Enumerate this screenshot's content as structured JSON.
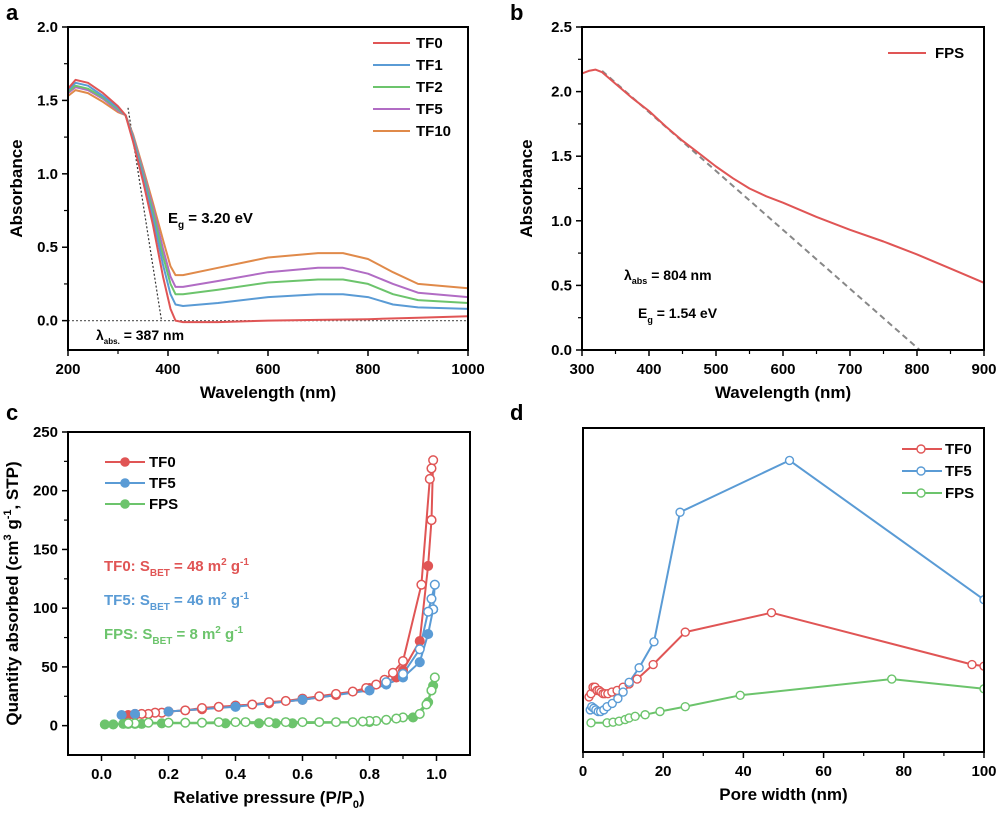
{
  "chart_data": [
    {
      "panel": "a",
      "type": "line",
      "title": "",
      "xlabel": "Wavelength (nm)",
      "ylabel": "Absorbance",
      "xlim": [
        200,
        1000
      ],
      "ylim": [
        -0.2,
        2.0
      ],
      "xticks": [
        200,
        400,
        600,
        800,
        1000
      ],
      "xtick_labels": [
        "200",
        "400",
        "600",
        "800",
        "1000"
      ],
      "yticks": [
        0.0,
        0.5,
        1.0,
        1.5,
        2.0
      ],
      "ytick_labels": [
        "0.0",
        "0.5",
        "1.0",
        "1.5",
        "2.0"
      ],
      "grid": false,
      "legend_position": "top-right",
      "series": [
        {
          "name": "TF0",
          "color": "#e05555",
          "x": [
            200,
            215,
            240,
            270,
            300,
            315,
            330,
            350,
            370,
            390,
            405,
            415,
            430,
            500,
            600,
            700,
            800,
            900,
            1000
          ],
          "y": [
            1.58,
            1.64,
            1.62,
            1.55,
            1.46,
            1.4,
            1.22,
            0.95,
            0.65,
            0.3,
            0.08,
            0.0,
            -0.01,
            -0.01,
            0.0,
            0.005,
            0.01,
            0.02,
            0.03
          ]
        },
        {
          "name": "TF1",
          "color": "#5a9bd5",
          "x": [
            200,
            215,
            240,
            270,
            300,
            315,
            330,
            350,
            370,
            390,
            405,
            415,
            430,
            500,
            600,
            700,
            750,
            800,
            850,
            900,
            1000
          ],
          "y": [
            1.57,
            1.62,
            1.6,
            1.53,
            1.45,
            1.4,
            1.24,
            0.98,
            0.7,
            0.38,
            0.18,
            0.11,
            0.1,
            0.12,
            0.16,
            0.18,
            0.18,
            0.16,
            0.11,
            0.09,
            0.08
          ]
        },
        {
          "name": "TF2",
          "color": "#6cc46c",
          "x": [
            200,
            215,
            240,
            270,
            300,
            315,
            330,
            350,
            370,
            390,
            405,
            415,
            430,
            500,
            600,
            700,
            750,
            800,
            850,
            900,
            1000
          ],
          "y": [
            1.56,
            1.6,
            1.58,
            1.52,
            1.44,
            1.4,
            1.25,
            1.0,
            0.74,
            0.44,
            0.25,
            0.18,
            0.18,
            0.21,
            0.26,
            0.28,
            0.28,
            0.25,
            0.18,
            0.14,
            0.12
          ]
        },
        {
          "name": "TF5",
          "color": "#b16cc4",
          "x": [
            200,
            215,
            240,
            270,
            300,
            315,
            330,
            350,
            370,
            390,
            405,
            415,
            430,
            500,
            600,
            700,
            750,
            800,
            850,
            900,
            1000
          ],
          "y": [
            1.55,
            1.59,
            1.57,
            1.51,
            1.43,
            1.4,
            1.26,
            1.02,
            0.77,
            0.49,
            0.3,
            0.23,
            0.23,
            0.27,
            0.33,
            0.36,
            0.36,
            0.32,
            0.25,
            0.19,
            0.16
          ]
        },
        {
          "name": "TF10",
          "color": "#e08a4a",
          "x": [
            200,
            215,
            240,
            270,
            300,
            315,
            330,
            350,
            370,
            390,
            405,
            415,
            430,
            500,
            600,
            700,
            750,
            800,
            850,
            900,
            1000
          ],
          "y": [
            1.53,
            1.57,
            1.55,
            1.49,
            1.42,
            1.4,
            1.27,
            1.04,
            0.8,
            0.55,
            0.37,
            0.31,
            0.31,
            0.36,
            0.43,
            0.46,
            0.46,
            0.42,
            0.33,
            0.25,
            0.22
          ]
        }
      ],
      "tangent_line": {
        "x": [
          320,
          387
        ],
        "y": [
          1.45,
          0.0
        ],
        "style": "dotted",
        "color": "#333333"
      },
      "baseline_line": {
        "y": 0.0,
        "style": "dotted",
        "color": "#666666"
      },
      "annotations": [
        {
          "text_main": "E",
          "text_sub": "g",
          "text_rest": " = 3.20 eV"
        },
        {
          "text_main": "λ",
          "text_sub": "abs.",
          "text_rest": " = 387 nm"
        }
      ]
    },
    {
      "panel": "b",
      "type": "line",
      "title": "",
      "xlabel": "Wavelength (nm)",
      "ylabel": "Absorbance",
      "xlim": [
        300,
        900
      ],
      "ylim": [
        0.0,
        2.5
      ],
      "xticks": [
        300,
        400,
        500,
        600,
        700,
        800,
        900
      ],
      "xtick_labels": [
        "300",
        "400",
        "500",
        "600",
        "700",
        "800",
        "900"
      ],
      "yticks": [
        0.0,
        0.5,
        1.0,
        1.5,
        2.0,
        2.5
      ],
      "ytick_labels": [
        "0.0",
        "0.5",
        "1.0",
        "1.5",
        "2.0",
        "2.5"
      ],
      "grid": false,
      "legend_position": "top-right",
      "series": [
        {
          "name": "FPS",
          "color": "#e05555",
          "x": [
            300,
            310,
            320,
            330,
            350,
            375,
            400,
            425,
            450,
            475,
            500,
            525,
            550,
            575,
            600,
            650,
            700,
            750,
            800,
            850,
            900
          ],
          "y": [
            2.14,
            2.16,
            2.17,
            2.15,
            2.06,
            1.95,
            1.85,
            1.73,
            1.62,
            1.52,
            1.42,
            1.33,
            1.25,
            1.19,
            1.14,
            1.03,
            0.93,
            0.84,
            0.74,
            0.63,
            0.52
          ]
        }
      ],
      "tangent_line": {
        "x": [
          330,
          804
        ],
        "y": [
          2.16,
          0.0
        ],
        "style": "dashed",
        "color": "#888888"
      },
      "annotations": [
        {
          "text_main": "λ",
          "text_sub": "abs",
          "text_rest": " = 804 nm"
        },
        {
          "text_main": "E",
          "text_sub": "g",
          "text_rest": " = 1.54 eV"
        }
      ]
    },
    {
      "panel": "c",
      "type": "scatter",
      "title": "",
      "xlabel": "Relative pressure (P/P0)",
      "xlabel_main": "Relative pressure (P/P",
      "xlabel_sub": "0",
      "xlabel_end": ")",
      "ylabel": "Quantity absorbed (cm3 g-1, STP)",
      "ylabel_parts": [
        "Quantity absorbed (cm",
        "3",
        " g",
        "-1",
        ", STP)"
      ],
      "xlim": [
        -0.1,
        1.1
      ],
      "ylim": [
        -25,
        250
      ],
      "xticks": [
        0.0,
        0.2,
        0.4,
        0.6,
        0.8,
        1.0
      ],
      "xtick_labels": [
        "0.0",
        "0.2",
        "0.4",
        "0.6",
        "0.8",
        "1.0"
      ],
      "yticks": [
        0,
        50,
        100,
        150,
        200,
        250
      ],
      "ytick_labels": [
        "0",
        "50",
        "100",
        "150",
        "200",
        "250"
      ],
      "grid": false,
      "legend_position": "top-left",
      "series": [
        {
          "name": "TF0 adsorption",
          "legend": "TF0",
          "color": "#e05555",
          "filled": true,
          "x": [
            0.07,
            0.08,
            0.1,
            0.2,
            0.3,
            0.4,
            0.5,
            0.6,
            0.7,
            0.8,
            0.85,
            0.88,
            0.9,
            0.95,
            0.975,
            0.985
          ],
          "y": [
            8,
            9,
            10,
            12,
            14,
            17,
            19,
            22,
            26,
            32,
            37,
            41,
            47,
            72,
            136,
            175
          ]
        },
        {
          "name": "TF0 desorption",
          "color": "#e05555",
          "filled": false,
          "x": [
            0.985,
            0.99,
            0.985,
            0.98,
            0.955,
            0.9,
            0.87,
            0.845,
            0.82,
            0.79,
            0.75,
            0.7,
            0.65,
            0.6,
            0.55,
            0.5,
            0.45,
            0.4,
            0.35,
            0.3,
            0.25,
            0.2,
            0.18,
            0.16,
            0.14,
            0.12,
            0.1
          ],
          "y": [
            175,
            226,
            219,
            210,
            120,
            55,
            45,
            39,
            35,
            32,
            29,
            27,
            25,
            23,
            21,
            20,
            18,
            17,
            16,
            15,
            13,
            12,
            11,
            11,
            10,
            10,
            9
          ]
        },
        {
          "name": "TF5 adsorption",
          "legend": "TF5",
          "color": "#5a9bd5",
          "filled": true,
          "x": [
            0.06,
            0.1,
            0.2,
            0.4,
            0.6,
            0.8,
            0.85,
            0.9,
            0.95,
            0.975,
            0.99
          ],
          "y": [
            9,
            10,
            12,
            16,
            22,
            30,
            35,
            41,
            54,
            78,
            99
          ]
        },
        {
          "name": "TF5 desorption",
          "color": "#5a9bd5",
          "filled": false,
          "x": [
            0.99,
            0.995,
            0.985,
            0.975,
            0.95,
            0.9,
            0.85
          ],
          "y": [
            99,
            120,
            108,
            97,
            65,
            44,
            37
          ]
        },
        {
          "name": "FPS adsorption",
          "legend": "FPS",
          "color": "#6cc46c",
          "filled": true,
          "x": [
            0.01,
            0.035,
            0.065,
            0.08,
            0.1,
            0.12,
            0.18,
            0.37,
            0.47,
            0.52,
            0.57,
            0.8,
            0.93,
            0.975,
            0.985,
            0.99
          ],
          "y": [
            1,
            1,
            1.5,
            1.5,
            1.5,
            1.5,
            2,
            2,
            2,
            2,
            2,
            3,
            7,
            20,
            30,
            34
          ]
        },
        {
          "name": "FPS desorption",
          "color": "#6cc46c",
          "filled": false,
          "x": [
            0.995,
            0.985,
            0.97,
            0.95,
            0.9,
            0.88,
            0.85,
            0.82,
            0.8,
            0.78,
            0.75,
            0.7,
            0.65,
            0.6,
            0.55,
            0.5,
            0.43,
            0.4,
            0.35,
            0.3,
            0.25,
            0.2,
            0.14,
            0.1,
            0.08
          ],
          "y": [
            41,
            30,
            18,
            10,
            7,
            6,
            5,
            4,
            4,
            3.5,
            3,
            3,
            3,
            3,
            3,
            3,
            3,
            3,
            3,
            2.5,
            2.5,
            2.5,
            2.5,
            2,
            2
          ]
        }
      ],
      "annotations": [
        {
          "prefix": "TF0: S",
          "sub": "BET",
          "mid": " = 48 m",
          "sup1": "2",
          "mid2": " g",
          "sup2": "-1",
          "color": "#e05555"
        },
        {
          "prefix": "TF5: S",
          "sub": "BET",
          "mid": " = 46 m",
          "sup1": "2",
          "mid2": " g",
          "sup2": "-1",
          "color": "#5a9bd5"
        },
        {
          "prefix": "FPS: S",
          "sub": "BET",
          "mid": " = 8 m",
          "sup1": "2",
          "mid2": " g",
          "sup2": "-1",
          "color": "#6cc46c"
        }
      ]
    },
    {
      "panel": "d",
      "type": "line",
      "title": "",
      "xlabel": "Pore width (nm)",
      "ylabel": "",
      "xlim": [
        0,
        100
      ],
      "ylim": [
        0,
        1
      ],
      "y_units": "relative (no tick labels)",
      "xticks": [
        0,
        20,
        40,
        60,
        80,
        100
      ],
      "xtick_labels": [
        "0",
        "20",
        "40",
        "60",
        "80",
        "100"
      ],
      "grid": false,
      "legend_position": "top-right",
      "series": [
        {
          "name": "TF0",
          "color": "#e05555",
          "marker": "open-circle",
          "x": [
            1.5,
            2.0,
            2.5,
            3.0,
            3.5,
            4.0,
            4.5,
            5.0,
            5.5,
            6.2,
            7.2,
            8.5,
            10,
            11.5,
            13.5,
            17.5,
            25.5,
            47,
            97,
            100
          ],
          "y": [
            0.17,
            0.18,
            0.2,
            0.2,
            0.19,
            0.19,
            0.185,
            0.18,
            0.18,
            0.18,
            0.185,
            0.19,
            0.2,
            0.21,
            0.225,
            0.27,
            0.37,
            0.43,
            0.27,
            0.265
          ]
        },
        {
          "name": "TF5",
          "color": "#5a9bd5",
          "marker": "open-circle",
          "x": [
            1.8,
            2.2,
            2.7,
            3.2,
            3.8,
            4.4,
            5.2,
            6.0,
            7.3,
            8.7,
            10,
            11.5,
            14,
            17.7,
            24.2,
            51.5,
            100
          ],
          "y": [
            0.13,
            0.14,
            0.135,
            0.13,
            0.125,
            0.125,
            0.13,
            0.14,
            0.15,
            0.165,
            0.185,
            0.215,
            0.26,
            0.34,
            0.74,
            0.9,
            0.47
          ]
        },
        {
          "name": "FPS",
          "color": "#6cc46c",
          "marker": "open-circle",
          "x": [
            2.0,
            6.0,
            7.5,
            9.0,
            10.5,
            11.5,
            13,
            15.5,
            19.2,
            25.5,
            39.2,
            77,
            100
          ],
          "y": [
            0.09,
            0.09,
            0.092,
            0.095,
            0.1,
            0.105,
            0.11,
            0.115,
            0.125,
            0.14,
            0.175,
            0.225,
            0.195
          ]
        }
      ]
    }
  ],
  "panels": {
    "a": {
      "letter": "a"
    },
    "b": {
      "letter": "b"
    },
    "c": {
      "letter": "c"
    },
    "d": {
      "letter": "d"
    }
  }
}
